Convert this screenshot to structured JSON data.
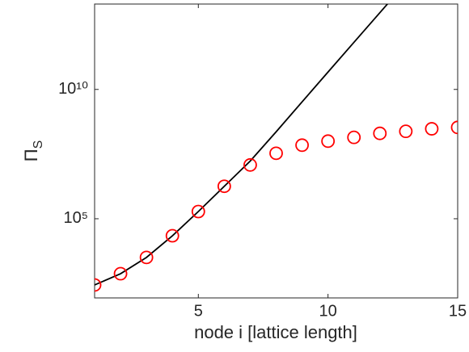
{
  "chart_data": {
    "type": "line",
    "x_label": "node i [lattice length]",
    "y_label": "Π_S",
    "x": [
      1,
      2,
      3,
      4,
      5,
      6,
      7,
      8,
      9,
      10,
      11,
      12,
      13,
      14,
      15
    ],
    "series": [
      {
        "kind": "line",
        "color": "#000000",
        "values": [
          275,
          750,
          3200,
          22000,
          190000,
          1800000,
          17000000,
          230000000,
          3300000000,
          47000000000,
          660000000000,
          9300000000000,
          130000000000000,
          null,
          null
        ]
      },
      {
        "kind": "scatter",
        "color": "#ff0000",
        "values": [
          275,
          750,
          3200,
          22000,
          190000,
          1800000,
          12000000,
          34000000,
          70000000,
          100000000,
          140000000,
          200000000,
          240000000,
          300000000,
          340000000
        ]
      }
    ],
    "xlim": [
      1,
      15
    ],
    "ylim": [
      87,
      20000000000000
    ],
    "xticks": [
      5,
      10,
      15
    ],
    "yticks": [
      {
        "value": 100000,
        "label": "10⁵"
      },
      {
        "value": 10000000000,
        "label": "10¹⁰"
      }
    ],
    "ylog": true
  }
}
